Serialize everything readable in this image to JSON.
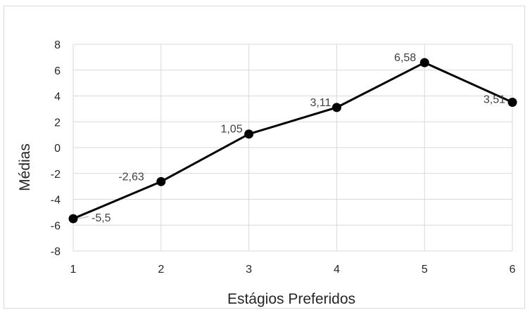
{
  "chart_data": {
    "type": "line",
    "title": "",
    "xlabel": "Estágios Preferidos",
    "ylabel": "Médias",
    "x": [
      1,
      2,
      3,
      4,
      5,
      6
    ],
    "xticks": [
      "1",
      "2",
      "3",
      "4",
      "5",
      "6"
    ],
    "ylim": [
      -8,
      8
    ],
    "yticks": [
      "8",
      "6",
      "4",
      "2",
      "0",
      "-2",
      "-4",
      "-6",
      "-8"
    ],
    "series": [
      {
        "values": [
          -5.5,
          -2.63,
          1.05,
          3.11,
          6.58,
          3.51
        ],
        "data_labels": [
          "-5,5",
          "-2,63",
          "1,05",
          "3,11",
          "6,58",
          "3,51"
        ]
      }
    ],
    "grid": true,
    "legend": "none",
    "colors": {
      "line": "#000000",
      "grid": "#d9d9d9",
      "leader": "#a6a6a6"
    }
  }
}
